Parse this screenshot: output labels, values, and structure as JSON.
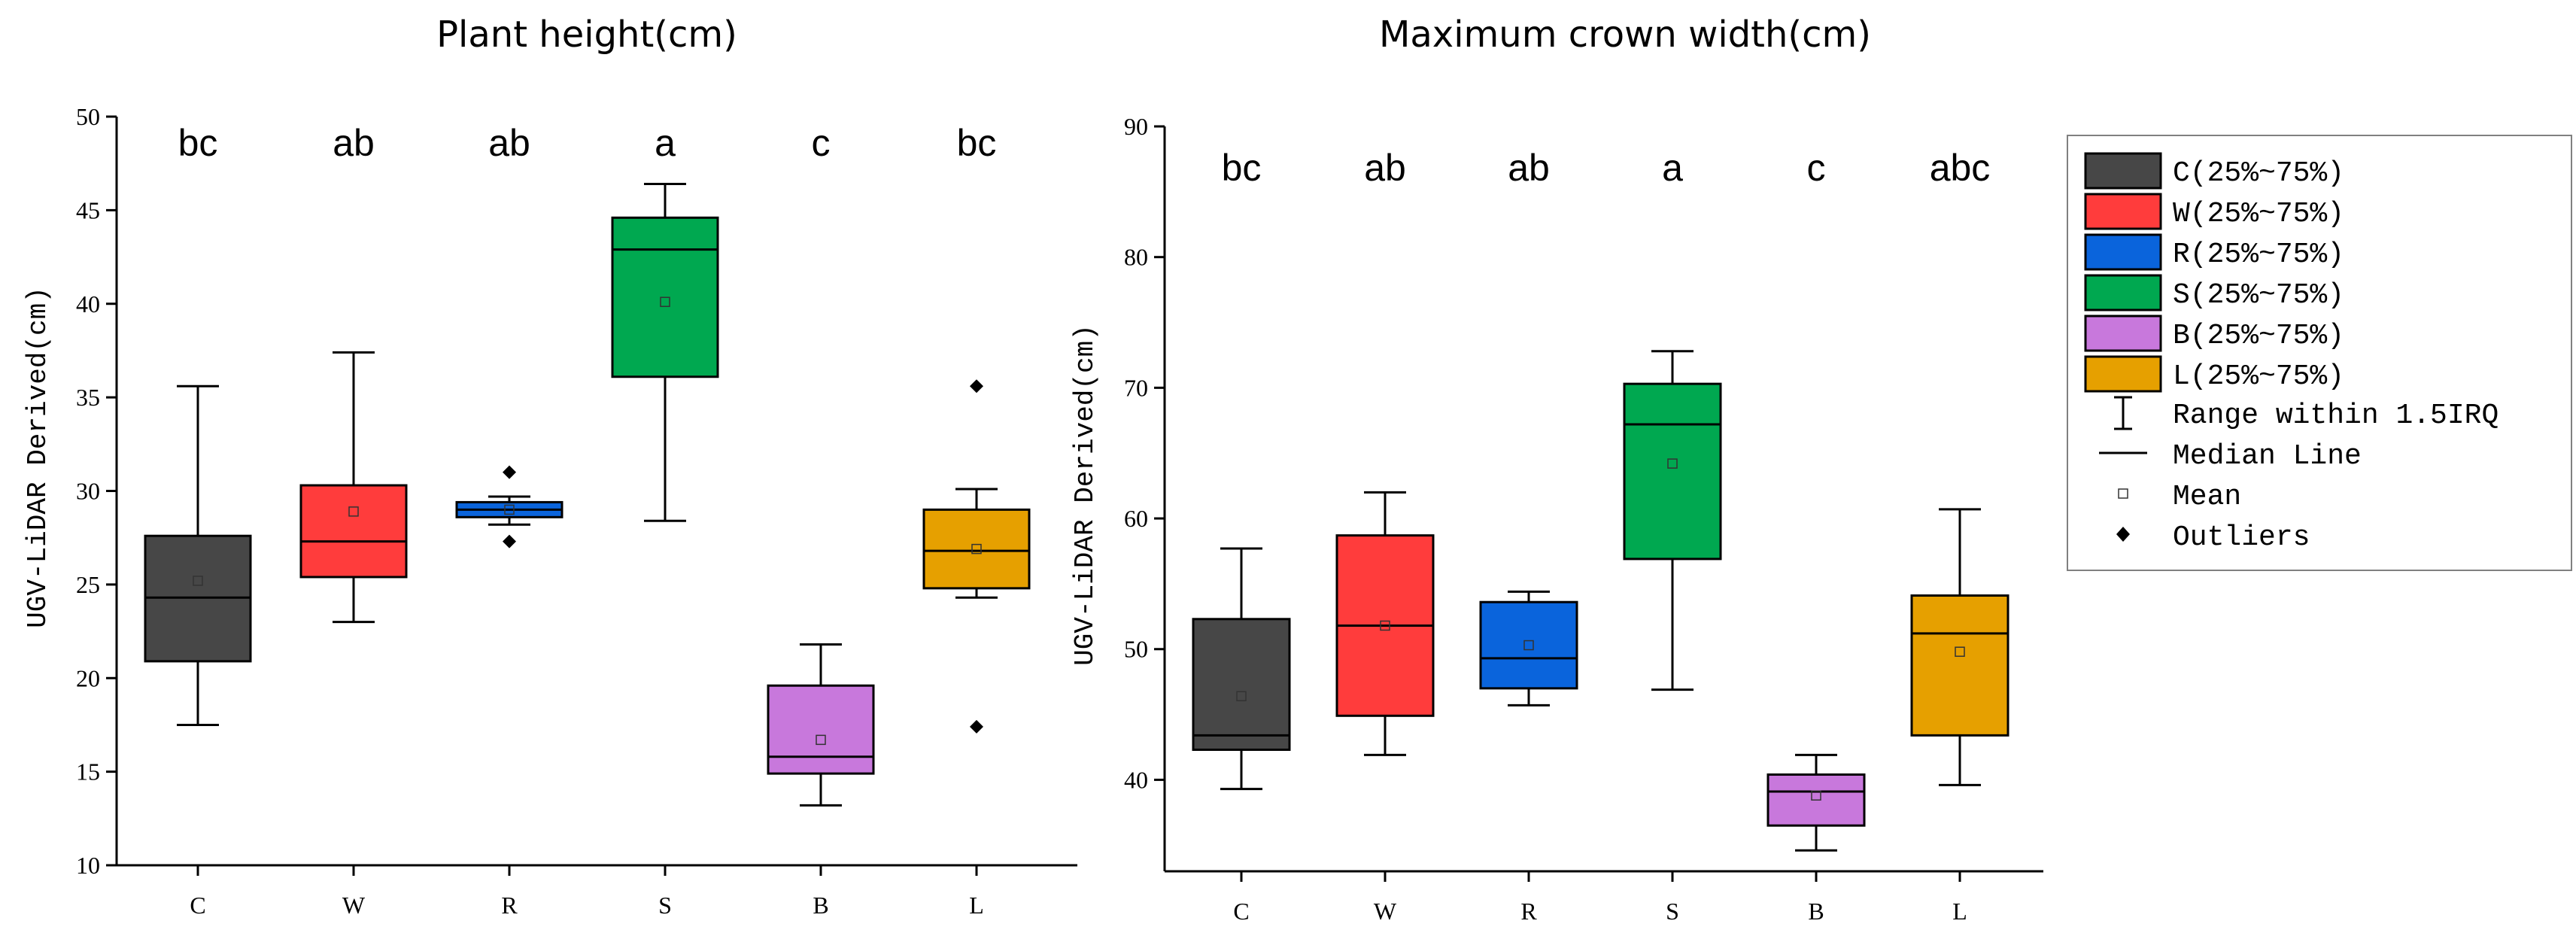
{
  "chart_data": [
    {
      "type": "box",
      "title": "Plant height(cm)",
      "ylabel": "UGV-LiDAR Derived(cm)",
      "xlabel": "",
      "ylim": [
        10,
        50
      ],
      "yticks": [
        10,
        15,
        20,
        25,
        30,
        35,
        40,
        45,
        50
      ],
      "categories": [
        "C",
        "W",
        "R",
        "S",
        "B",
        "L"
      ],
      "boxes": [
        {
          "name": "C",
          "whisker_low": 17.5,
          "q1": 20.9,
          "median": 24.3,
          "q3": 27.6,
          "whisker_high": 35.6,
          "mean": 25.2,
          "outliers": []
        },
        {
          "name": "W",
          "whisker_low": 23.0,
          "q1": 25.4,
          "median": 27.3,
          "q3": 30.3,
          "whisker_high": 37.4,
          "mean": 28.9,
          "outliers": []
        },
        {
          "name": "R",
          "whisker_low": 28.2,
          "q1": 28.6,
          "median": 29.0,
          "q3": 29.4,
          "whisker_high": 29.7,
          "mean": 29.0,
          "outliers": [
            31.0,
            27.3
          ]
        },
        {
          "name": "S",
          "whisker_low": 28.4,
          "q1": 36.1,
          "median": 42.9,
          "q3": 44.6,
          "whisker_high": 46.4,
          "mean": 40.1,
          "outliers": []
        },
        {
          "name": "B",
          "whisker_low": 13.2,
          "q1": 14.9,
          "median": 15.8,
          "q3": 19.6,
          "whisker_high": 21.8,
          "mean": 16.7,
          "outliers": []
        },
        {
          "name": "L",
          "whisker_low": 24.3,
          "q1": 24.8,
          "median": 26.8,
          "q3": 29.0,
          "whisker_high": 30.1,
          "mean": 26.9,
          "outliers": [
            35.6,
            17.4
          ]
        }
      ],
      "significance": [
        "bc",
        "ab",
        "ab",
        "a",
        "c",
        "bc"
      ]
    },
    {
      "type": "box",
      "title": "Maximum crown width(cm)",
      "ylabel": "UGV-LiDAR Derived(cm)",
      "xlabel": "",
      "ylim": [
        33,
        90
      ],
      "yticks": [
        40,
        50,
        60,
        70,
        80,
        90
      ],
      "categories": [
        "C",
        "W",
        "R",
        "S",
        "B",
        "L"
      ],
      "boxes": [
        {
          "name": "C",
          "whisker_low": 39.3,
          "q1": 42.3,
          "median": 43.4,
          "q3": 52.3,
          "whisker_high": 57.7,
          "mean": 46.4,
          "outliers": []
        },
        {
          "name": "W",
          "whisker_low": 41.9,
          "q1": 44.9,
          "median": 51.8,
          "q3": 58.7,
          "whisker_high": 62.0,
          "mean": 51.8,
          "outliers": []
        },
        {
          "name": "R",
          "whisker_low": 45.7,
          "q1": 47.0,
          "median": 49.3,
          "q3": 53.6,
          "whisker_high": 54.4,
          "mean": 50.3,
          "outliers": []
        },
        {
          "name": "S",
          "whisker_low": 46.9,
          "q1": 56.9,
          "median": 67.2,
          "q3": 70.3,
          "whisker_high": 72.8,
          "mean": 64.2,
          "outliers": []
        },
        {
          "name": "B",
          "whisker_low": 34.6,
          "q1": 36.5,
          "median": 39.1,
          "q3": 40.4,
          "whisker_high": 41.9,
          "mean": 38.8,
          "outliers": []
        },
        {
          "name": "L",
          "whisker_low": 39.6,
          "q1": 43.4,
          "median": 51.2,
          "q3": 54.1,
          "whisker_high": 60.7,
          "mean": 49.8,
          "outliers": []
        }
      ],
      "significance": [
        "bc",
        "ab",
        "ab",
        "a",
        "c",
        "abc"
      ]
    }
  ],
  "colors": {
    "C": "#474747",
    "W": "#ff3c3c",
    "R": "#0a64dc",
    "S": "#00a850",
    "B": "#c878dc",
    "L": "#e6a000"
  },
  "legend": {
    "items": [
      {
        "key": "C",
        "label": "C(25%~75%)"
      },
      {
        "key": "W",
        "label": "W(25%~75%)"
      },
      {
        "key": "R",
        "label": "R(25%~75%)"
      },
      {
        "key": "S",
        "label": "S(25%~75%)"
      },
      {
        "key": "B",
        "label": "B(25%~75%)"
      },
      {
        "key": "L",
        "label": "L(25%~75%)"
      }
    ],
    "range_label": "Range within 1.5IRQ",
    "median_label": "Median Line",
    "mean_label": "Mean",
    "outliers_label": "Outliers"
  }
}
